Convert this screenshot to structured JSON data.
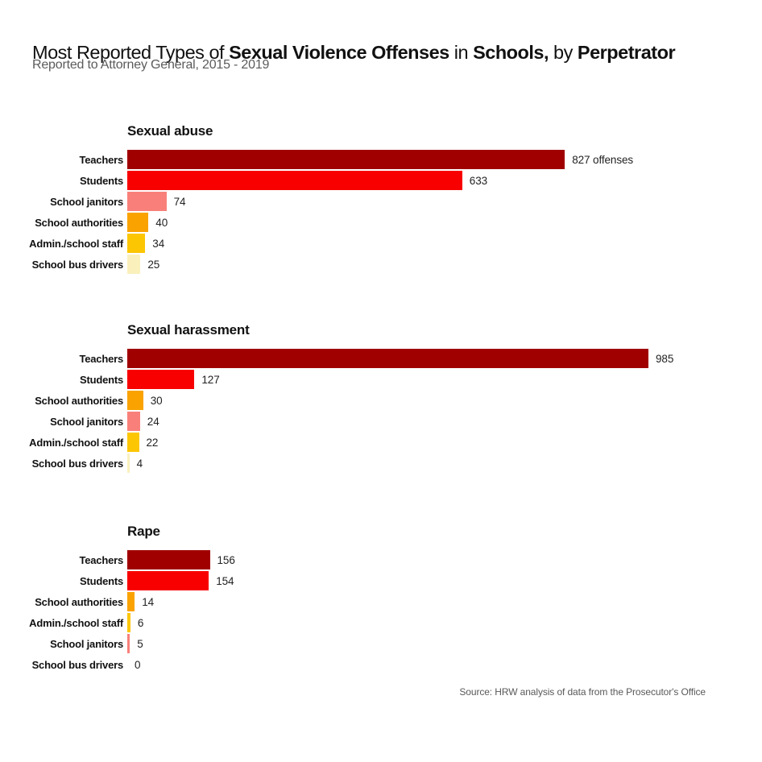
{
  "header": {
    "title_segments": [
      {
        "text": "Most Reported Types of ",
        "bold": false
      },
      {
        "text": "Sexual Violence Offenses",
        "bold": true
      },
      {
        "text": " in ",
        "bold": false
      },
      {
        "text": "Schools,",
        "bold": true
      },
      {
        "text": " by ",
        "bold": false
      },
      {
        "text": "Perpetrator",
        "bold": true
      }
    ],
    "subtitle": "Reported to Attorney General, 2015 - 2019"
  },
  "footer": {
    "source": "Source: HRW analysis of data from the Prosecutor's Office"
  },
  "colors": {
    "teachers": "#A00000",
    "students": "#F80000",
    "school_janitors": "#F9807A",
    "school_authorities": "#F9A200",
    "admin_school_staff": "#FCC603",
    "school_bus_drivers": "#FAF0BC"
  },
  "bar_scale": {
    "max_value": 985,
    "max_pixels": 647
  },
  "chart_data": [
    {
      "type": "bar",
      "orientation": "horizontal",
      "title": "Sexual abuse",
      "rows": [
        {
          "label": "Teachers",
          "value": 827,
          "value_label": "827 offenses",
          "color_key": "teachers"
        },
        {
          "label": "Students",
          "value": 633,
          "value_label": "633",
          "color_key": "students"
        },
        {
          "label": "School janitors",
          "value": 74,
          "value_label": "74",
          "color_key": "school_janitors"
        },
        {
          "label": "School authorities",
          "value": 40,
          "value_label": "40",
          "color_key": "school_authorities"
        },
        {
          "label": "Admin./school staff",
          "value": 34,
          "value_label": "34",
          "color_key": "admin_school_staff"
        },
        {
          "label": "School bus drivers",
          "value": 25,
          "value_label": "25",
          "color_key": "school_bus_drivers"
        }
      ]
    },
    {
      "type": "bar",
      "orientation": "horizontal",
      "title": "Sexual harassment",
      "rows": [
        {
          "label": "Teachers",
          "value": 985,
          "value_label": "985",
          "color_key": "teachers"
        },
        {
          "label": "Students",
          "value": 127,
          "value_label": "127",
          "color_key": "students"
        },
        {
          "label": "School authorities",
          "value": 30,
          "value_label": "30",
          "color_key": "school_authorities"
        },
        {
          "label": "School janitors",
          "value": 24,
          "value_label": "24",
          "color_key": "school_janitors"
        },
        {
          "label": "Admin./school staff",
          "value": 22,
          "value_label": "22",
          "color_key": "admin_school_staff"
        },
        {
          "label": "School bus drivers",
          "value": 4,
          "value_label": "4",
          "color_key": "school_bus_drivers"
        }
      ]
    },
    {
      "type": "bar",
      "orientation": "horizontal",
      "title": "Rape",
      "rows": [
        {
          "label": "Teachers",
          "value": 156,
          "value_label": "156",
          "color_key": "teachers"
        },
        {
          "label": "Students",
          "value": 154,
          "value_label": "154",
          "color_key": "students"
        },
        {
          "label": "School authorities",
          "value": 14,
          "value_label": "14",
          "color_key": "school_authorities"
        },
        {
          "label": "Admin./school staff",
          "value": 6,
          "value_label": "6",
          "color_key": "admin_school_staff"
        },
        {
          "label": "School janitors",
          "value": 5,
          "value_label": "5",
          "color_key": "school_janitors"
        },
        {
          "label": "School bus drivers",
          "value": 0,
          "value_label": "0",
          "color_key": "school_bus_drivers"
        }
      ]
    }
  ]
}
